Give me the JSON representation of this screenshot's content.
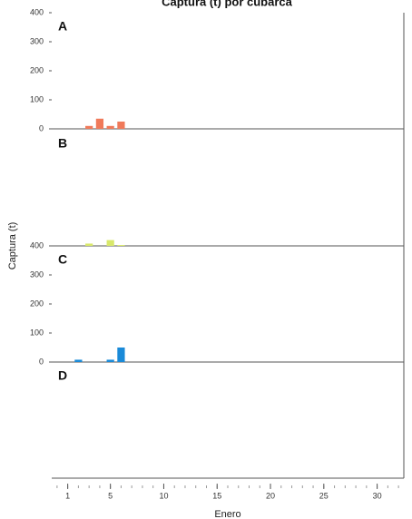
{
  "chart_data": [
    {
      "type": "bar",
      "title": "Captura (t) por cubarca",
      "ylabel": "Captura (t)",
      "label": "A",
      "x": [
        3,
        4,
        5,
        6
      ],
      "values": [
        10,
        35,
        10,
        25
      ],
      "color": "#f07a5a",
      "xlim": [
        -0.5,
        32.5
      ],
      "ylim": [
        0,
        400
      ],
      "yticks": [
        0,
        100,
        200,
        300,
        400
      ]
    },
    {
      "type": "bar",
      "label": "B",
      "x": [
        3,
        5,
        6
      ],
      "values": [
        8,
        20,
        3
      ],
      "color": "#d8e86a",
      "xlim": [
        -0.5,
        32.5
      ],
      "ylim": [
        0,
        400
      ]
    },
    {
      "type": "bar",
      "label": "C",
      "x": [
        2,
        5,
        6
      ],
      "values": [
        8,
        8,
        50
      ],
      "color": "#1a8ad8",
      "xlim": [
        -0.5,
        32.5
      ],
      "ylim": [
        0,
        400
      ],
      "yticks": [
        0,
        100,
        200,
        300,
        400
      ]
    },
    {
      "type": "bar",
      "label": "D",
      "xlim": [
        -0.5,
        32.5
      ],
      "ylim": [
        0,
        400
      ],
      "xticks": [
        1,
        5,
        10,
        15,
        20,
        25,
        30
      ],
      "xlabel": "Enero"
    }
  ]
}
